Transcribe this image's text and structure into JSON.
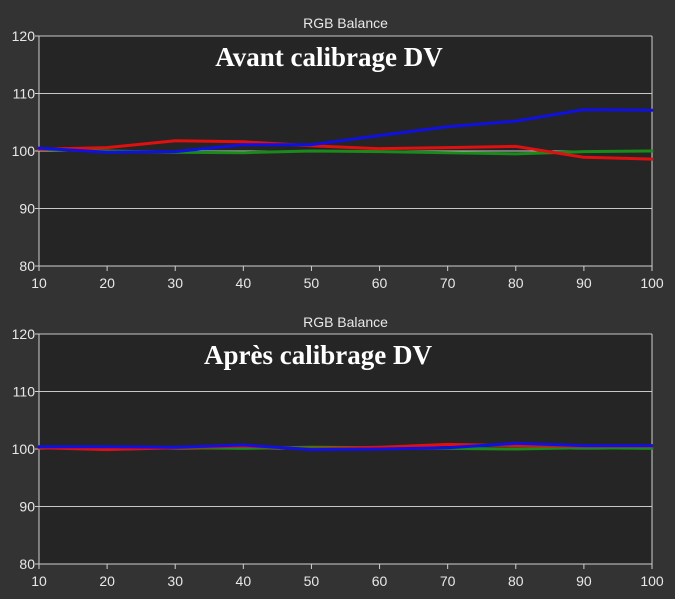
{
  "chart_data": [
    {
      "type": "line",
      "title": "RGB Balance",
      "annotation": "Avant calibrage DV",
      "xlabel": "",
      "ylabel": "",
      "x": [
        10,
        20,
        30,
        40,
        50,
        60,
        70,
        80,
        90,
        100
      ],
      "xlim": [
        10,
        100
      ],
      "ylim": [
        80,
        120
      ],
      "xticks": [
        "10",
        "20",
        "30",
        "40",
        "50",
        "60",
        "70",
        "80",
        "90",
        "100"
      ],
      "yticks": [
        "80",
        "90",
        "100",
        "110",
        "120"
      ],
      "grid": true,
      "series": [
        {
          "color": "#1a8a1a",
          "values": [
            100.3,
            100.0,
            99.8,
            99.7,
            100.0,
            99.9,
            99.7,
            99.5,
            99.9,
            100.0
          ]
        },
        {
          "color": "#e01010",
          "values": [
            100.3,
            100.6,
            101.8,
            101.6,
            100.9,
            100.4,
            100.6,
            100.8,
            98.9,
            98.6
          ]
        },
        {
          "color": "#1010e0",
          "values": [
            100.5,
            99.8,
            99.9,
            101.1,
            101.1,
            102.7,
            104.2,
            105.2,
            107.2,
            107.1
          ]
        }
      ]
    },
    {
      "type": "line",
      "title": "RGB Balance",
      "annotation": "Après calibrage DV",
      "xlabel": "",
      "ylabel": "",
      "x": [
        10,
        20,
        30,
        40,
        50,
        60,
        70,
        80,
        90,
        100
      ],
      "xlim": [
        10,
        100
      ],
      "ylim": [
        80,
        120
      ],
      "xticks": [
        "10",
        "20",
        "30",
        "40",
        "50",
        "60",
        "70",
        "80",
        "90",
        "100"
      ],
      "yticks": [
        "80",
        "90",
        "100",
        "110",
        "120"
      ],
      "grid": true,
      "series": [
        {
          "color": "#1a8a1a",
          "values": [
            100.2,
            100.2,
            100.2,
            100.1,
            100.3,
            100.2,
            100.1,
            100.0,
            100.2,
            100.1
          ]
        },
        {
          "color": "#e01010",
          "values": [
            100.2,
            99.9,
            100.2,
            100.5,
            100.0,
            100.3,
            100.8,
            100.6,
            100.5,
            100.5
          ]
        },
        {
          "color": "#1010e0",
          "values": [
            100.4,
            100.4,
            100.3,
            100.7,
            99.9,
            100.0,
            100.2,
            101.0,
            100.6,
            100.6
          ]
        }
      ]
    }
  ]
}
